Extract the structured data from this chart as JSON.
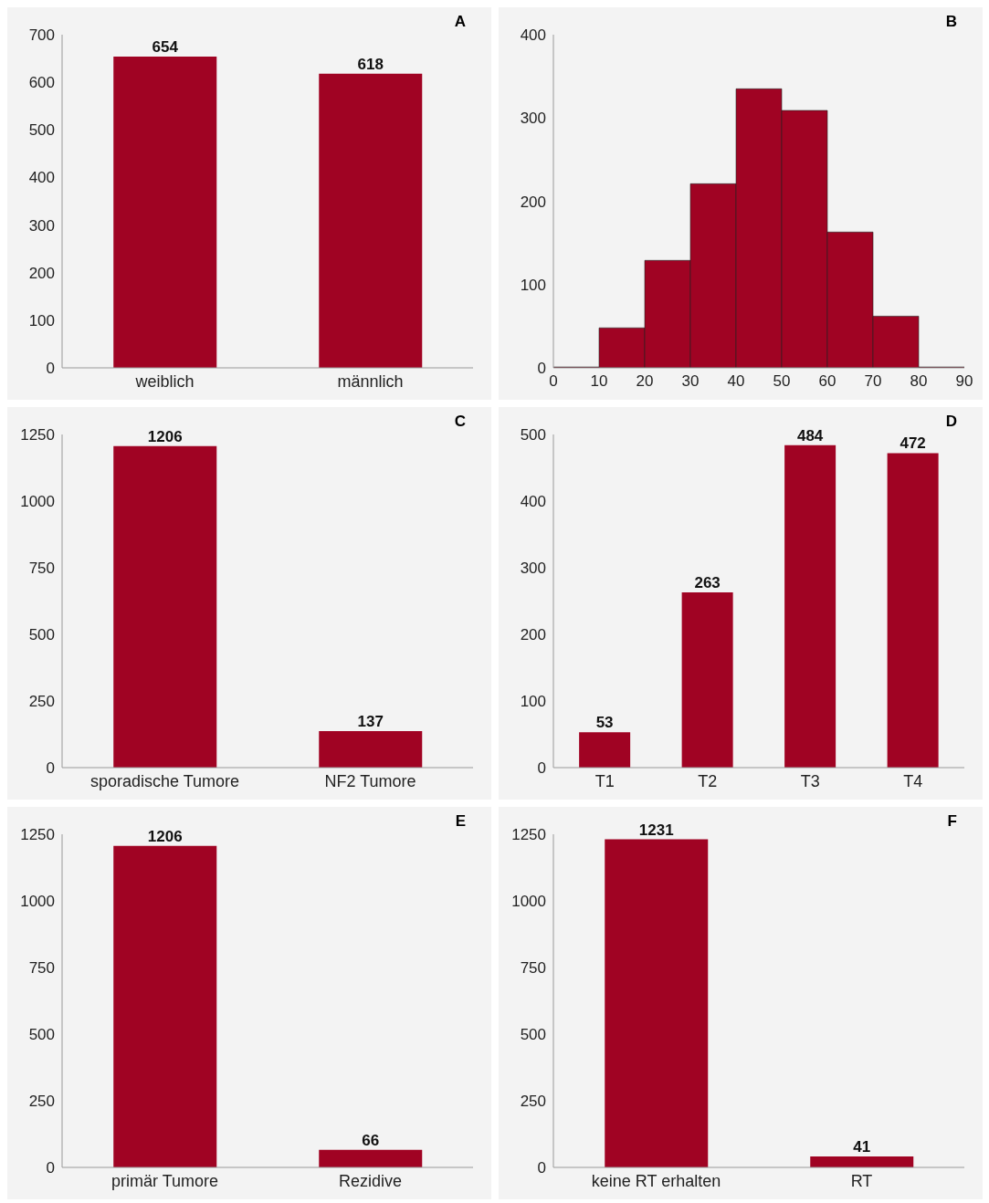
{
  "chart_data": [
    {
      "type": "bar",
      "categories": [
        "weiblich",
        "männlich"
      ],
      "values": [
        654,
        618
      ],
      "color": "#a00323",
      "ylim": [
        0,
        700
      ],
      "yticks": [
        0,
        100,
        200,
        300,
        400,
        500,
        600,
        700
      ],
      "data_labels": true,
      "annotations": [
        "A"
      ]
    },
    {
      "type": "histogram",
      "bins": [
        0,
        10,
        20,
        30,
        40,
        50,
        60,
        70,
        80,
        90
      ],
      "values": [
        1,
        48,
        129,
        221,
        335,
        309,
        163,
        62,
        1
      ],
      "color": "#a00323",
      "xlim": [
        0,
        90
      ],
      "xticks": [
        0,
        10,
        20,
        30,
        40,
        50,
        60,
        70,
        80,
        90
      ],
      "ylim": [
        0,
        400
      ],
      "yticks": [
        0,
        100,
        200,
        300,
        400
      ],
      "annotations": [
        "B"
      ]
    },
    {
      "type": "bar",
      "categories": [
        "sporadische Tumore",
        "NF2 Tumore"
      ],
      "values": [
        1206,
        137
      ],
      "color": "#a00323",
      "ylim": [
        0,
        1250
      ],
      "yticks": [
        0,
        250,
        500,
        750,
        1000,
        1250
      ],
      "data_labels": true,
      "annotations": [
        "C"
      ]
    },
    {
      "type": "bar",
      "categories": [
        "T1",
        "T2",
        "T3",
        "T4"
      ],
      "values": [
        53,
        263,
        484,
        472
      ],
      "color": "#a00323",
      "ylim": [
        0,
        500
      ],
      "yticks": [
        0,
        100,
        200,
        300,
        400,
        500
      ],
      "data_labels": true,
      "annotations": [
        "D"
      ]
    },
    {
      "type": "bar",
      "categories": [
        "primär Tumore",
        "Rezidive"
      ],
      "values": [
        1206,
        66
      ],
      "color": "#a00323",
      "ylim": [
        0,
        1250
      ],
      "yticks": [
        0,
        250,
        500,
        750,
        1000,
        1250
      ],
      "data_labels": true,
      "annotations": [
        "E"
      ]
    },
    {
      "type": "bar",
      "categories": [
        "keine RT erhalten",
        "RT"
      ],
      "values": [
        1231,
        41
      ],
      "color": "#a00323",
      "ylim": [
        0,
        1250
      ],
      "yticks": [
        0,
        250,
        500,
        750,
        1000,
        1250
      ],
      "data_labels": true,
      "annotations": [
        "F"
      ]
    }
  ]
}
